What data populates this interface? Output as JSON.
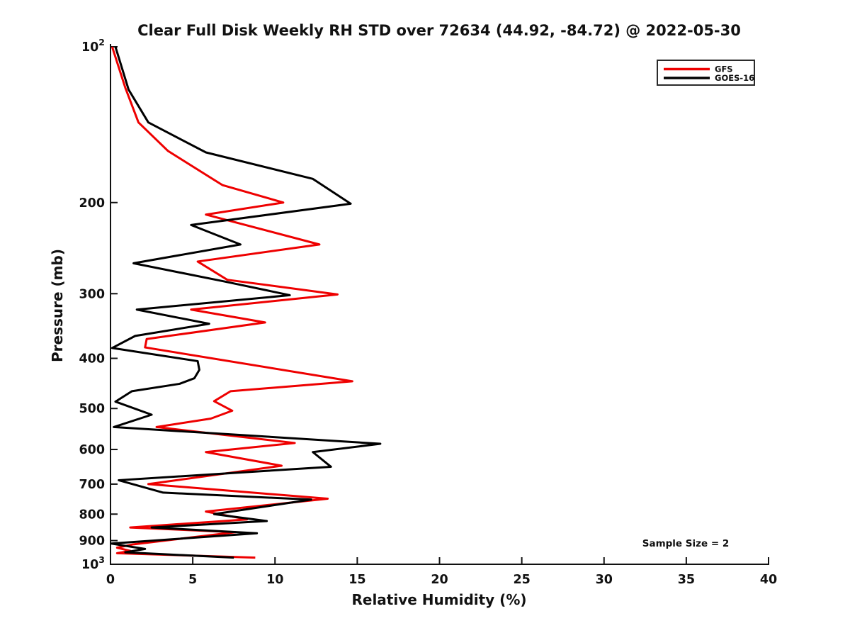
{
  "chart_data": {
    "type": "line",
    "title": "Clear Full Disk Weekly RH STD over 72634 (44.92, -84.72) @ 2022-05-30",
    "xlabel": "Relative Humidity (%)",
    "ylabel": "Pressure (mb)",
    "xlim": [
      0,
      40
    ],
    "ylim": [
      100,
      1000
    ],
    "y_scale": "log",
    "y_inverted": true,
    "grid": false,
    "x_ticks": [
      0,
      5,
      10,
      15,
      20,
      25,
      30,
      35,
      40
    ],
    "y_ticks": [
      [
        100,
        "10^2"
      ],
      [
        200,
        "200"
      ],
      [
        300,
        "300"
      ],
      [
        400,
        "400"
      ],
      [
        500,
        "500"
      ],
      [
        600,
        "600"
      ],
      [
        700,
        "700"
      ],
      [
        800,
        "800"
      ],
      [
        900,
        "900"
      ],
      [
        1000,
        "10^3"
      ]
    ],
    "annotation": "Sample Size = 2",
    "legend_position": "top-right",
    "axis_color": "#111111",
    "series": [
      {
        "name": "GFS",
        "color": "#ee0000",
        "points": [
          [
            100,
            0.1
          ],
          [
            120,
            0.9
          ],
          [
            140,
            1.7
          ],
          [
            159,
            3.5
          ],
          [
            185,
            6.8
          ],
          [
            200,
            10.5
          ],
          [
            211,
            5.8
          ],
          [
            241,
            12.7
          ],
          [
            260,
            5.3
          ],
          [
            282,
            7.1
          ],
          [
            301,
            13.8
          ],
          [
            322,
            4.9
          ],
          [
            341,
            9.4
          ],
          [
            367,
            2.2
          ],
          [
            381,
            2.1
          ],
          [
            443,
            14.7
          ],
          [
            463,
            7.3
          ],
          [
            484,
            6.3
          ],
          [
            505,
            7.4
          ],
          [
            523,
            6.1
          ],
          [
            543,
            2.8
          ],
          [
            583,
            11.2
          ],
          [
            607,
            5.8
          ],
          [
            645,
            10.4
          ],
          [
            700,
            2.3
          ],
          [
            747,
            13.2
          ],
          [
            791,
            5.8
          ],
          [
            819,
            8.3
          ],
          [
            849,
            1.2
          ],
          [
            867,
            7.6
          ],
          [
            915,
            1.4
          ],
          [
            929,
            0.4
          ],
          [
            942,
            1.2
          ],
          [
            952,
            0.4
          ],
          [
            971,
            8.8
          ]
        ]
      },
      {
        "name": "GOES-16",
        "color": "#000000",
        "points": [
          [
            100,
            0.3
          ],
          [
            121,
            1.1
          ],
          [
            140,
            2.3
          ],
          [
            160,
            5.8
          ],
          [
            180,
            12.3
          ],
          [
            201,
            14.6
          ],
          [
            221,
            4.9
          ],
          [
            241,
            7.9
          ],
          [
            262,
            1.4
          ],
          [
            284,
            6.9
          ],
          [
            302,
            10.9
          ],
          [
            322,
            1.6
          ],
          [
            343,
            6.0
          ],
          [
            362,
            1.5
          ],
          [
            382,
            0.1
          ],
          [
            405,
            5.3
          ],
          [
            421,
            5.4
          ],
          [
            437,
            5.1
          ],
          [
            448,
            4.2
          ],
          [
            463,
            1.3
          ],
          [
            485,
            0.3
          ],
          [
            514,
            2.5
          ],
          [
            543,
            0.2
          ],
          [
            585,
            16.4
          ],
          [
            607,
            12.3
          ],
          [
            648,
            13.4
          ],
          [
            688,
            0.5
          ],
          [
            727,
            3.2
          ],
          [
            750,
            12.2
          ],
          [
            800,
            6.3
          ],
          [
            825,
            9.5
          ],
          [
            849,
            2.5
          ],
          [
            871,
            8.9
          ],
          [
            912,
            0.05
          ],
          [
            934,
            2.1
          ],
          [
            948,
            0.9
          ],
          [
            971,
            7.5
          ]
        ]
      }
    ]
  }
}
